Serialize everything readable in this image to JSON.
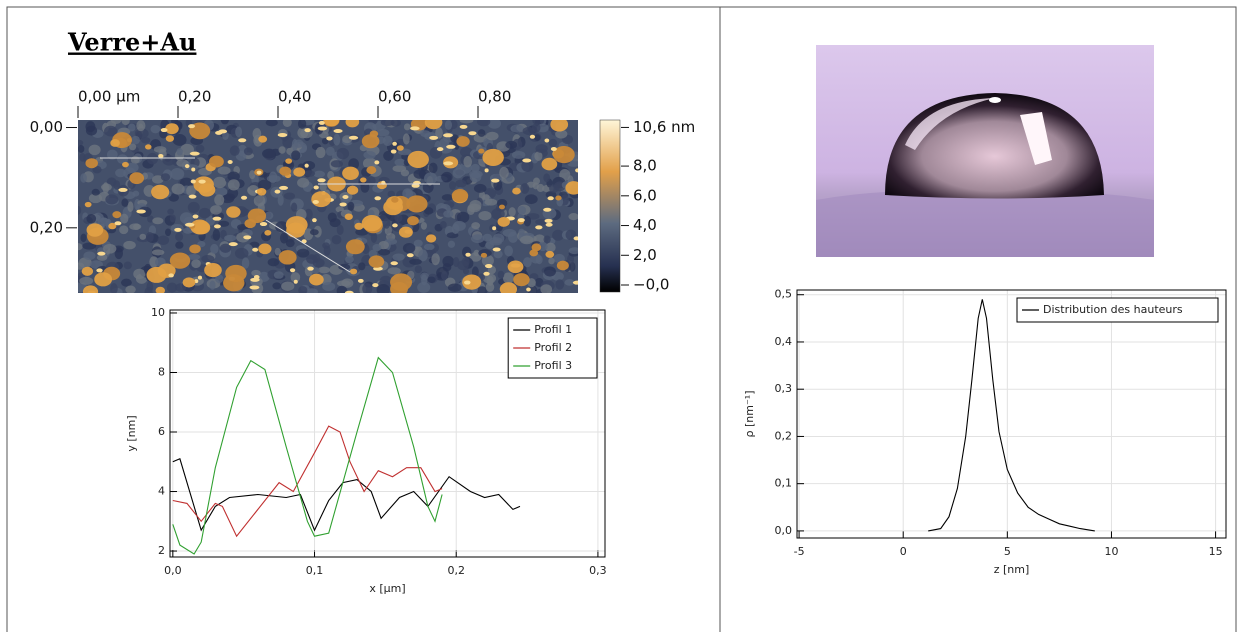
{
  "heading": "Verre+Au",
  "afm": {
    "xlim": [
      0,
      1.0
    ],
    "xticks": [
      {
        "value": 0,
        "label": "0,00 µm"
      },
      {
        "value": 0.2,
        "label": "0,20"
      },
      {
        "value": 0.4,
        "label": "0,40"
      },
      {
        "value": 0.6,
        "label": "0,60"
      },
      {
        "value": 0.8,
        "label": "0,80"
      }
    ],
    "ylim": [
      -0.015,
      0.33
    ],
    "yticks": [
      {
        "value": 0,
        "label": "0,00"
      },
      {
        "value": 0.2,
        "label": "0,20"
      }
    ],
    "colorbar_lim": [
      -0.47,
      11.1
    ],
    "colorbar_ticks": [
      {
        "value": 10.6,
        "label": "10,6 nm"
      },
      {
        "value": 8,
        "label": "8,0"
      },
      {
        "value": 6,
        "label": "6,0"
      },
      {
        "value": 4,
        "label": "4,0"
      },
      {
        "value": 2,
        "label": "2,0"
      },
      {
        "value": 0,
        "label": "−0,0"
      }
    ]
  },
  "chart_data": [
    {
      "type": "line",
      "xlabel": "x [µm]",
      "ylabel": "y [nm]",
      "xlim": [
        -0.002,
        0.305
      ],
      "xticks": [
        {
          "value": 0,
          "label": "0,0"
        },
        {
          "value": 0.1,
          "label": "0,1"
        },
        {
          "value": 0.2,
          "label": "0,2"
        },
        {
          "value": 0.3,
          "label": "0,3"
        }
      ],
      "ylim": [
        1.8,
        10.1
      ],
      "yticks": [
        2,
        4,
        6,
        8,
        10
      ],
      "grid": true,
      "legend": "upper-right",
      "series": [
        {
          "name": "Profil 1",
          "color": "#000000",
          "x": [
            0,
            0.005,
            0.02,
            0.03,
            0.04,
            0.06,
            0.08,
            0.09,
            0.1,
            0.11,
            0.12,
            0.13,
            0.14,
            0.147,
            0.16,
            0.17,
            0.18,
            0.195,
            0.21,
            0.22,
            0.23,
            0.24,
            0.245
          ],
          "values": [
            5.0,
            5.1,
            2.7,
            3.5,
            3.8,
            3.9,
            3.8,
            3.9,
            2.7,
            3.7,
            4.3,
            4.4,
            4.0,
            3.1,
            3.8,
            4.0,
            3.5,
            4.5,
            4.0,
            3.8,
            3.9,
            3.4,
            3.5
          ]
        },
        {
          "name": "Profil 2",
          "color": "#c03030",
          "x": [
            0,
            0.01,
            0.02,
            0.03,
            0.035,
            0.045,
            0.06,
            0.075,
            0.085,
            0.1,
            0.11,
            0.118,
            0.125,
            0.135,
            0.145,
            0.155,
            0.165,
            0.175,
            0.185,
            0.19
          ],
          "values": [
            3.7,
            3.6,
            3.0,
            3.6,
            3.5,
            2.5,
            3.4,
            4.3,
            4.0,
            5.3,
            6.2,
            6.0,
            5.0,
            4.0,
            4.7,
            4.5,
            4.8,
            4.8,
            4.0,
            4.1
          ]
        },
        {
          "name": "Profil 3",
          "color": "#30a030",
          "x": [
            0,
            0.005,
            0.015,
            0.02,
            0.03,
            0.045,
            0.055,
            0.065,
            0.08,
            0.095,
            0.1,
            0.11,
            0.13,
            0.145,
            0.155,
            0.17,
            0.18,
            0.185,
            0.19
          ],
          "values": [
            2.9,
            2.2,
            1.9,
            2.3,
            4.8,
            7.5,
            8.4,
            8.1,
            5.5,
            3.0,
            2.5,
            2.6,
            6.0,
            8.5,
            8.0,
            5.5,
            3.5,
            3.0,
            3.9
          ]
        }
      ]
    },
    {
      "type": "line",
      "xlabel": "z [nm]",
      "ylabel": "ρ [nm⁻¹]",
      "xlim": [
        -5.1,
        15.5
      ],
      "xticks": [
        -5,
        0,
        5,
        10,
        15
      ],
      "ylim": [
        -0.015,
        0.51
      ],
      "yticks": [
        {
          "value": 0,
          "label": "0,0"
        },
        {
          "value": 0.1,
          "label": "0,1"
        },
        {
          "value": 0.2,
          "label": "0,2"
        },
        {
          "value": 0.3,
          "label": "0,3"
        },
        {
          "value": 0.4,
          "label": "0,4"
        },
        {
          "value": 0.5,
          "label": "0,5"
        }
      ],
      "grid": true,
      "legend": "upper-right",
      "series": [
        {
          "name": "Distribution des hauteurs",
          "color": "#000000",
          "x": [
            1.2,
            1.8,
            2.2,
            2.6,
            3.0,
            3.3,
            3.6,
            3.8,
            4.0,
            4.3,
            4.6,
            5.0,
            5.5,
            6.0,
            6.5,
            7.0,
            7.5,
            8.0,
            8.5,
            9.2
          ],
          "values": [
            0,
            0.005,
            0.03,
            0.09,
            0.2,
            0.32,
            0.45,
            0.49,
            0.45,
            0.32,
            0.21,
            0.13,
            0.08,
            0.05,
            0.035,
            0.025,
            0.015,
            0.01,
            0.005,
            0
          ]
        }
      ]
    }
  ]
}
